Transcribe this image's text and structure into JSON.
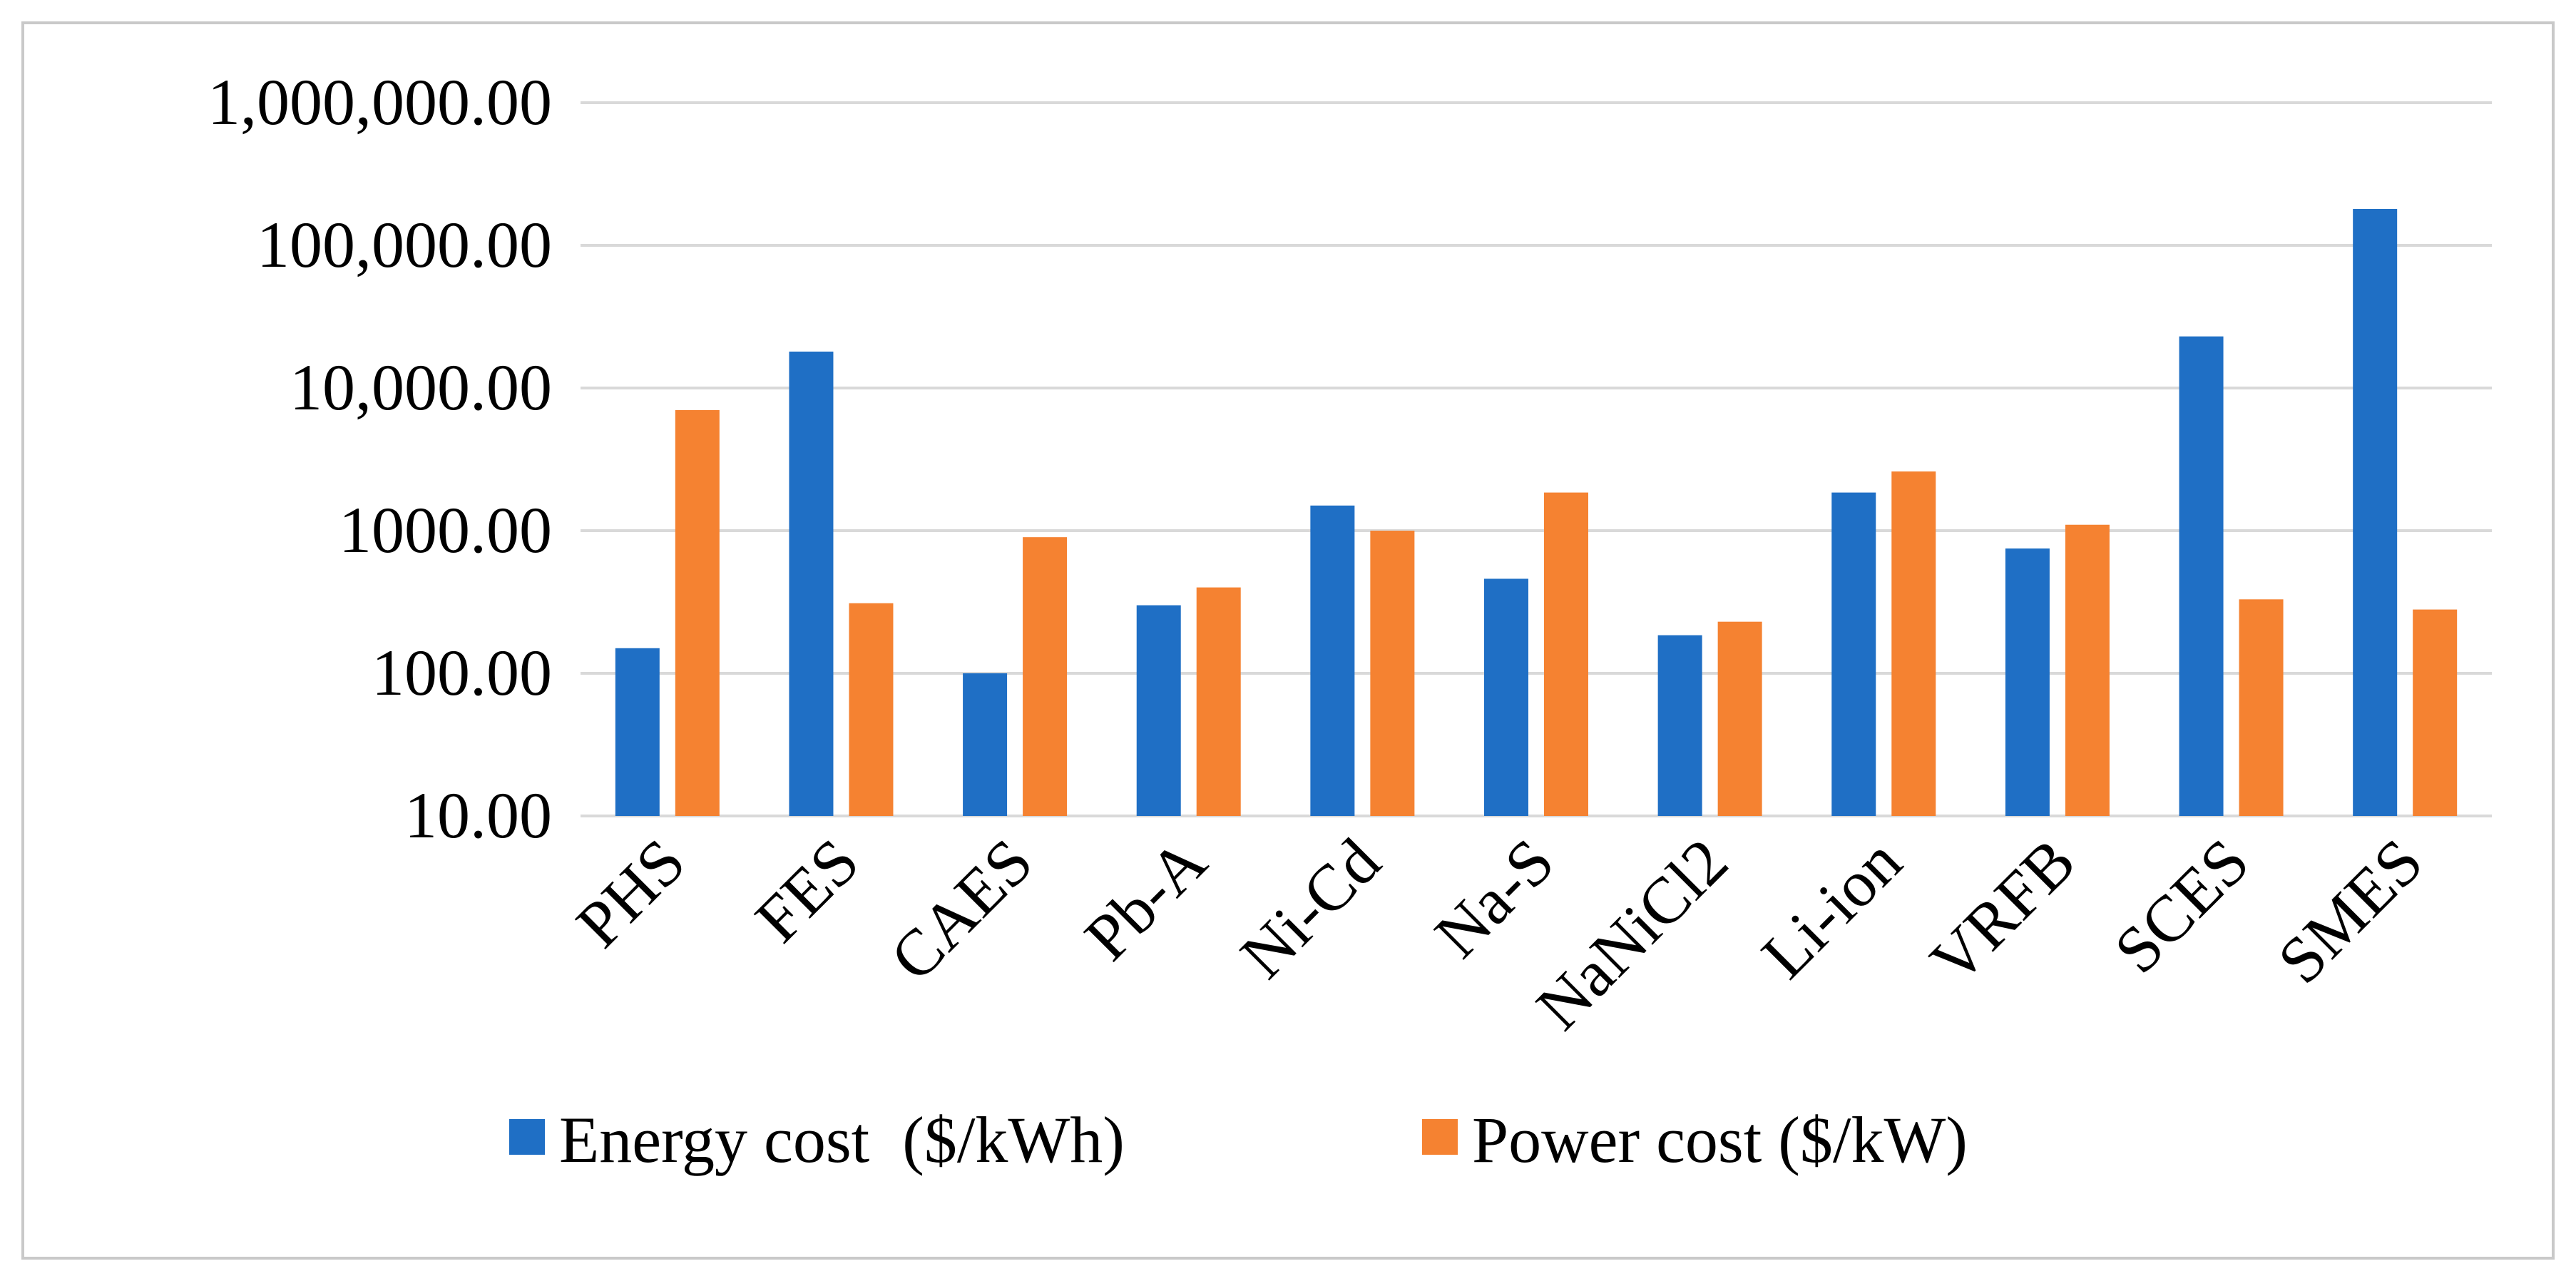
{
  "chart_data": {
    "type": "bar",
    "scale": "log",
    "categories": [
      "PHS",
      "FES",
      "CAES",
      "Pb-A",
      "Ni-Cd",
      "Na-S",
      "NaNiCl2",
      "Li-ion",
      "VRFB",
      "SCES",
      "SMES"
    ],
    "series": [
      {
        "name": "Energy cost  ($/kWh)",
        "color": "#1f6fc5",
        "values": [
          150,
          18000,
          100,
          300,
          1500,
          460,
          185,
          1850,
          750,
          23000,
          180000
        ]
      },
      {
        "name": "Power cost ($/kW)",
        "color": "#f58231",
        "values": [
          7000,
          310,
          900,
          400,
          1000,
          1850,
          230,
          2600,
          1100,
          330,
          280
        ]
      }
    ],
    "ylim": [
      10,
      1000000
    ],
    "yticks": [
      10,
      100,
      1000,
      10000,
      100000,
      1000000
    ],
    "ytick_labels": [
      "10.00",
      "100.00",
      "1000.00",
      "10,000.00",
      "100,000.00",
      "1,000,000.00"
    ],
    "grid": true,
    "legend_position": "bottom"
  }
}
